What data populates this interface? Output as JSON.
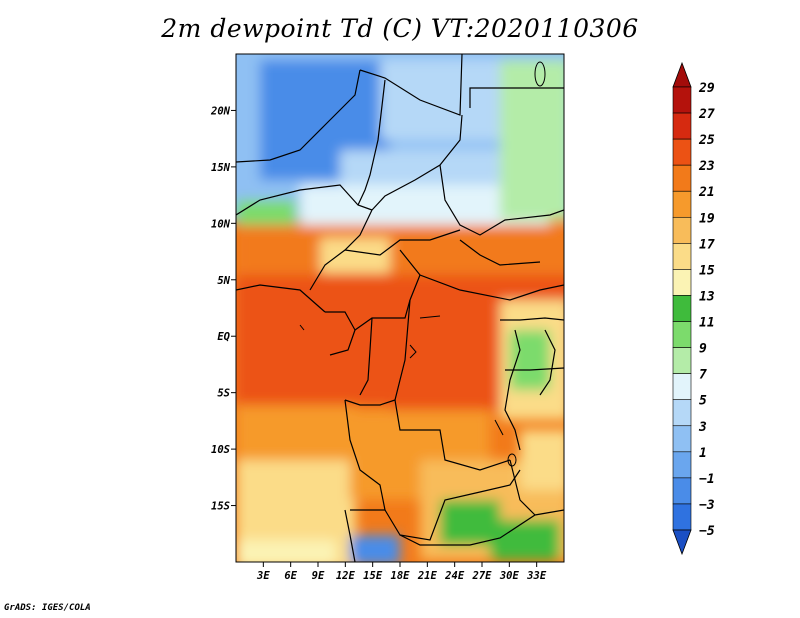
{
  "title": "2m dewpoint Td (C) VT:2020110306",
  "credit": "GrADS: IGES/COLA",
  "map": {
    "lon_range": [
      0,
      36
    ],
    "lat_range": [
      -20,
      25
    ],
    "x_ticks": [
      {
        "value": 3,
        "label": "3E"
      },
      {
        "value": 6,
        "label": "6E"
      },
      {
        "value": 9,
        "label": "9E"
      },
      {
        "value": 12,
        "label": "12E"
      },
      {
        "value": 15,
        "label": "15E"
      },
      {
        "value": 18,
        "label": "18E"
      },
      {
        "value": 21,
        "label": "21E"
      },
      {
        "value": 24,
        "label": "24E"
      },
      {
        "value": 27,
        "label": "27E"
      },
      {
        "value": 30,
        "label": "30E"
      },
      {
        "value": 33,
        "label": "33E"
      }
    ],
    "y_ticks": [
      {
        "value": 20,
        "label": "20N"
      },
      {
        "value": 15,
        "label": "15N"
      },
      {
        "value": 10,
        "label": "10N"
      },
      {
        "value": 5,
        "label": "5N"
      },
      {
        "value": 0,
        "label": "EQ"
      },
      {
        "value": -5,
        "label": "5S"
      },
      {
        "value": -10,
        "label": "10S"
      },
      {
        "value": -15,
        "label": "15S"
      }
    ]
  },
  "colorbar": {
    "levels": [
      {
        "value": "-5",
        "color": "#1e5fd6"
      },
      {
        "value": "-3",
        "color": "#2f72e0"
      },
      {
        "value": "-1",
        "color": "#4a8ce8"
      },
      {
        "value": "1",
        "color": "#6aa6ee"
      },
      {
        "value": "3",
        "color": "#8fc0f3"
      },
      {
        "value": "5",
        "color": "#b5d8f7"
      },
      {
        "value": "7",
        "color": "#e2f4fb"
      },
      {
        "value": "9",
        "color": "#b4eca8"
      },
      {
        "value": "11",
        "color": "#7cdb6c"
      },
      {
        "value": "13",
        "color": "#3fbb3c"
      },
      {
        "value": "15",
        "color": "#fbf3b4"
      },
      {
        "value": "17",
        "color": "#fbdc88"
      },
      {
        "value": "19",
        "color": "#f8bc5a"
      },
      {
        "value": "21",
        "color": "#f69a2c"
      },
      {
        "value": "23",
        "color": "#f27a1a"
      },
      {
        "value": "25",
        "color": "#ec5214"
      },
      {
        "value": "27",
        "color": "#d62a10"
      },
      {
        "value": "29",
        "color": "#b4120c"
      }
    ],
    "top_color": "#a30c0a",
    "bottom_color": "#1a4fc4"
  }
}
